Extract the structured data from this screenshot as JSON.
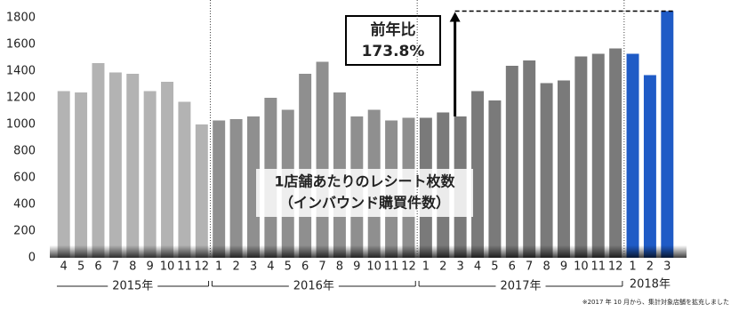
{
  "chart_data": {
    "type": "bar",
    "categories": [
      "4",
      "5",
      "6",
      "7",
      "8",
      "9",
      "10",
      "11",
      "12",
      "1",
      "2",
      "3",
      "4",
      "5",
      "6",
      "7",
      "8",
      "9",
      "10",
      "11",
      "12",
      "1",
      "2",
      "3",
      "4",
      "5",
      "6",
      "7",
      "8",
      "9",
      "10",
      "11",
      "12",
      "1",
      "2",
      "3"
    ],
    "series": [
      {
        "name": "2015年",
        "color": "#b3b3b3",
        "values": [
          1250,
          1240,
          1460,
          1390,
          1380,
          1250,
          1320,
          1170,
          1000,
          null,
          null,
          null,
          null,
          null,
          null,
          null,
          null,
          null,
          null,
          null,
          null,
          null,
          null,
          null,
          null,
          null,
          null,
          null,
          null,
          null,
          null,
          null,
          null,
          null,
          null,
          null
        ]
      },
      {
        "name": "2016年",
        "color": "#8f8f8f",
        "values": [
          null,
          null,
          null,
          null,
          null,
          null,
          null,
          null,
          null,
          1030,
          1040,
          1060,
          1200,
          1110,
          1380,
          1470,
          1240,
          1060,
          1110,
          1030,
          1050,
          null,
          null,
          null,
          null,
          null,
          null,
          null,
          null,
          null,
          null,
          null,
          null,
          null,
          null,
          null
        ]
      },
      {
        "name": "2017年",
        "color": "#7a7a7a",
        "values": [
          null,
          null,
          null,
          null,
          null,
          null,
          null,
          null,
          null,
          null,
          null,
          null,
          null,
          null,
          null,
          null,
          null,
          null,
          null,
          null,
          null,
          1050,
          1090,
          1060,
          1250,
          1180,
          1440,
          1480,
          1310,
          1330,
          1510,
          1530,
          1570,
          null,
          null,
          null
        ]
      },
      {
        "name": "2018年",
        "color": "#1f5bc6",
        "values": [
          null,
          null,
          null,
          null,
          null,
          null,
          null,
          null,
          null,
          null,
          null,
          null,
          null,
          null,
          null,
          null,
          null,
          null,
          null,
          null,
          null,
          null,
          null,
          null,
          null,
          null,
          null,
          null,
          null,
          null,
          null,
          null,
          null,
          1530,
          1370,
          1850
        ]
      }
    ],
    "ylim": [
      0,
      1900
    ],
    "yticks": [
      0,
      200,
      400,
      600,
      800,
      1000,
      1200,
      1400,
      1600,
      1800
    ],
    "label": [
      "1店舗あたりのレシート枚数",
      "（インバウンド購買件数）"
    ],
    "annotation": [
      "前年比",
      "173.8%"
    ],
    "footnote": "※2017 年 10 月から、集計対象店舗を拡充しました"
  }
}
